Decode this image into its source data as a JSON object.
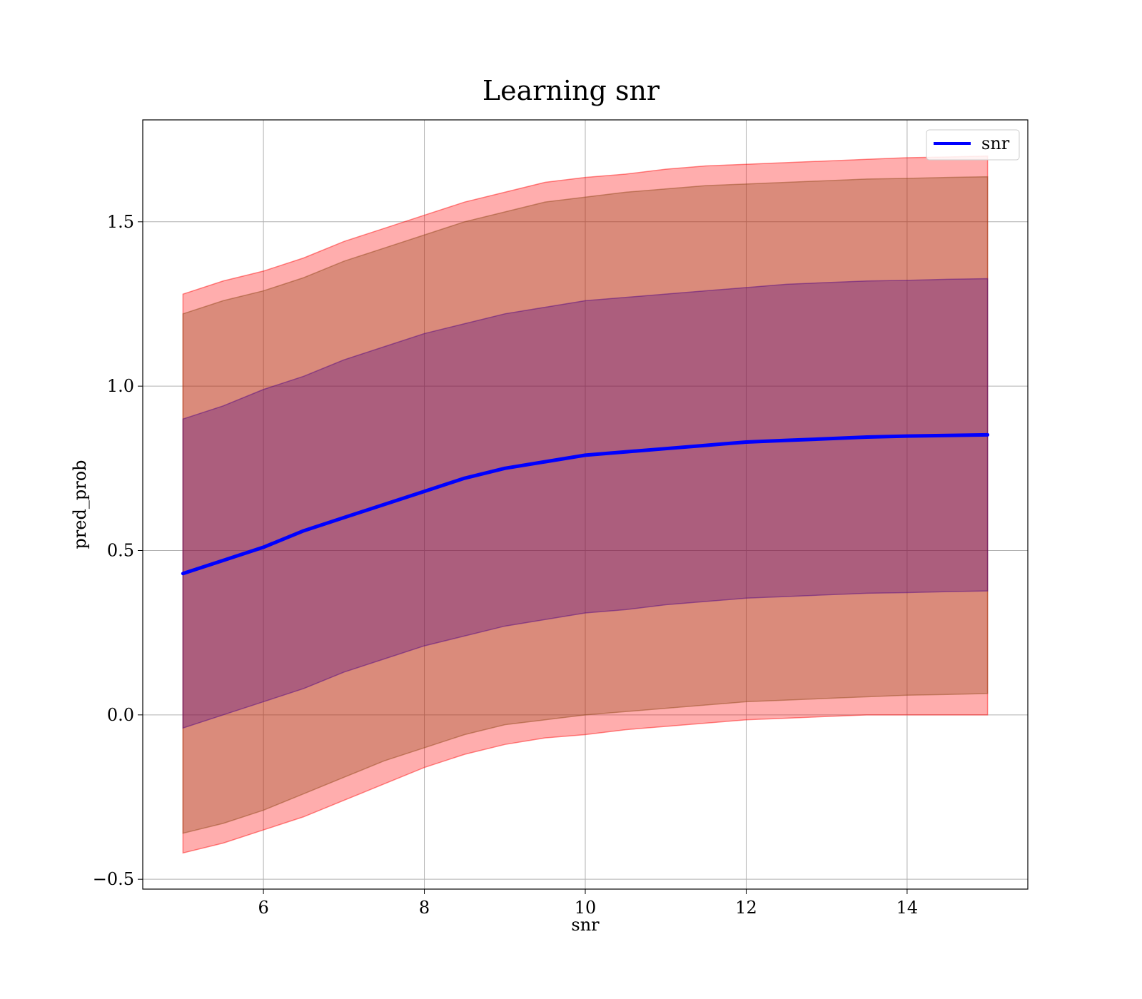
{
  "chart_data": {
    "type": "line",
    "title": "Learning snr",
    "xlabel": "snr",
    "ylabel": "pred_prob",
    "xlim": [
      4.5,
      15.5
    ],
    "ylim": [
      -0.53,
      1.81
    ],
    "xticks": [
      6,
      8,
      10,
      12,
      14
    ],
    "xtick_labels": [
      "6",
      "8",
      "10",
      "12",
      "14"
    ],
    "yticks": [
      -0.5,
      0.0,
      0.5,
      1.0,
      1.5
    ],
    "ytick_labels": [
      "−0.5",
      "0.0",
      "0.5",
      "1.0",
      "1.5"
    ],
    "grid": true,
    "legend_position": "top-right",
    "x": [
      5.0,
      5.5,
      6.0,
      6.5,
      7.0,
      7.5,
      8.0,
      8.5,
      9.0,
      9.5,
      10.0,
      10.5,
      11.0,
      11.5,
      12.0,
      12.5,
      13.0,
      13.5,
      14.0,
      14.5,
      15.0
    ],
    "series": [
      {
        "name": "snr",
        "color": "#0000ff",
        "values": [
          0.43,
          0.47,
          0.51,
          0.56,
          0.6,
          0.64,
          0.68,
          0.72,
          0.75,
          0.77,
          0.79,
          0.8,
          0.81,
          0.82,
          0.83,
          0.835,
          0.84,
          0.845,
          0.848,
          0.85,
          0.852
        ]
      }
    ],
    "bands": [
      {
        "color": "#ff0000",
        "opacity": 0.32,
        "upper": [
          1.28,
          1.32,
          1.35,
          1.39,
          1.44,
          1.48,
          1.52,
          1.56,
          1.59,
          1.62,
          1.635,
          1.645,
          1.66,
          1.67,
          1.675,
          1.68,
          1.685,
          1.69,
          1.695,
          1.697,
          1.7
        ],
        "lower": [
          -0.42,
          -0.39,
          -0.35,
          -0.31,
          -0.26,
          -0.21,
          -0.16,
          -0.12,
          -0.09,
          -0.07,
          -0.06,
          -0.045,
          -0.035,
          -0.025,
          -0.015,
          -0.01,
          -0.005,
          0.0,
          0.0,
          0.0,
          0.0
        ]
      },
      {
        "color": "#8b4513",
        "opacity": 0.32,
        "upper": [
          1.22,
          1.26,
          1.29,
          1.33,
          1.38,
          1.42,
          1.46,
          1.5,
          1.53,
          1.56,
          1.575,
          1.59,
          1.6,
          1.61,
          1.615,
          1.62,
          1.625,
          1.63,
          1.632,
          1.635,
          1.637
        ],
        "lower": [
          -0.36,
          -0.33,
          -0.29,
          -0.24,
          -0.19,
          -0.14,
          -0.1,
          -0.06,
          -0.03,
          -0.015,
          0.0,
          0.01,
          0.02,
          0.03,
          0.04,
          0.045,
          0.05,
          0.055,
          0.06,
          0.062,
          0.065
        ]
      },
      {
        "color": "#4b0082",
        "opacity": 0.32,
        "upper": [
          0.9,
          0.94,
          0.99,
          1.03,
          1.08,
          1.12,
          1.16,
          1.19,
          1.22,
          1.24,
          1.26,
          1.27,
          1.28,
          1.29,
          1.3,
          1.31,
          1.315,
          1.32,
          1.322,
          1.325,
          1.327
        ],
        "lower": [
          -0.04,
          0.0,
          0.04,
          0.08,
          0.13,
          0.17,
          0.21,
          0.24,
          0.27,
          0.29,
          0.31,
          0.32,
          0.335,
          0.345,
          0.355,
          0.36,
          0.365,
          0.37,
          0.372,
          0.375,
          0.377
        ]
      }
    ]
  }
}
